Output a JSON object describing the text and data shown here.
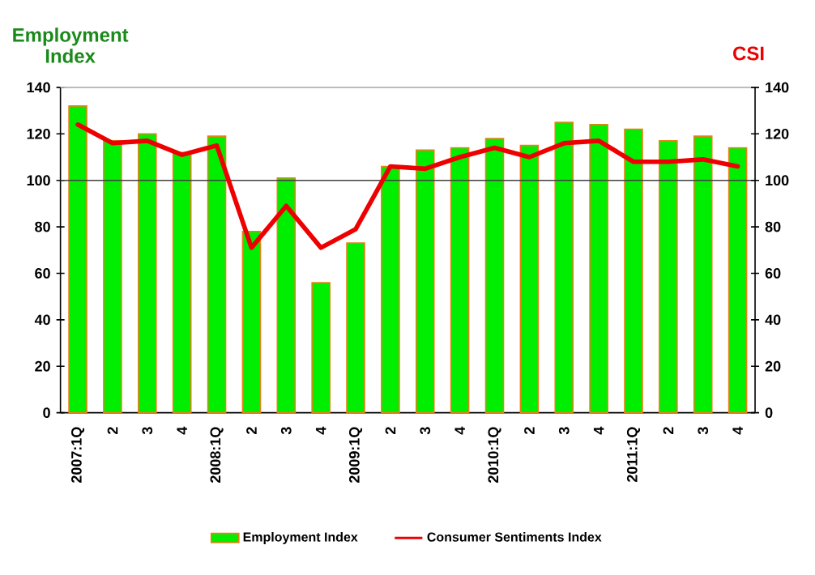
{
  "chart_data": {
    "type": "bar",
    "ylabel": "Employment Index",
    "y2label": "CSI",
    "categories": [
      "2007:1Q",
      "2",
      "3",
      "4",
      "2008:1Q",
      "2",
      "3",
      "4",
      "2009:1Q",
      "2",
      "3",
      "4",
      "2010:1Q",
      "2",
      "3",
      "4",
      "2011:1Q",
      "2",
      "3",
      "4"
    ],
    "series": [
      {
        "name": "Employment Index",
        "color": "#00ee00",
        "values": [
          132,
          117,
          120,
          112,
          119,
          78,
          101,
          56,
          73,
          106,
          113,
          114,
          118,
          115,
          125,
          124,
          122,
          117,
          119,
          114
        ]
      },
      {
        "name": "Consumer Sentiments Index",
        "type": "line",
        "axis": "y2",
        "color": "#ee0000",
        "values": [
          124,
          116,
          117,
          111,
          115,
          71,
          89,
          71,
          79,
          106,
          105,
          110,
          114,
          110,
          116,
          117,
          108,
          108,
          109,
          106
        ]
      }
    ],
    "ylim": [
      0,
      140
    ],
    "yticks": [
      0,
      20,
      40,
      60,
      80,
      100,
      120,
      140
    ],
    "y2lim": [
      0,
      140
    ],
    "y2ticks": [
      0,
      20,
      40,
      60,
      80,
      100,
      120,
      140
    ],
    "ref_lines": [
      {
        "axis": "y",
        "value": 100,
        "color": "#404040"
      }
    ],
    "legend": "bottom",
    "grid": false
  }
}
